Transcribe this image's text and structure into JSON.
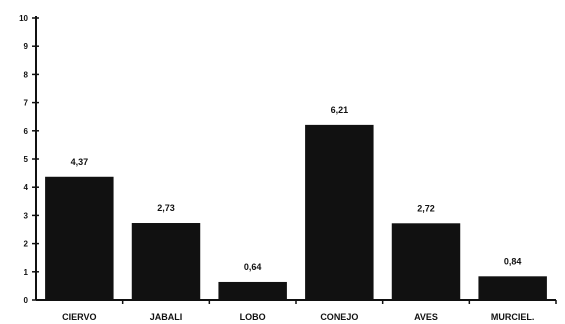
{
  "chart_data": {
    "type": "bar",
    "title": "",
    "xlabel": "",
    "ylabel": "",
    "categories": [
      "CIERVO",
      "JABALI",
      "LOBO",
      "CONEJO",
      "AVES",
      "MURCIEL."
    ],
    "values": [
      4.37,
      2.73,
      0.64,
      6.21,
      2.72,
      0.84
    ],
    "value_labels": [
      "4,37",
      "2,73",
      "0,64",
      "6,21",
      "2,72",
      "0,84"
    ],
    "ylim": [
      0,
      10
    ],
    "yticks": [
      0,
      1,
      2,
      3,
      4,
      5,
      6,
      7,
      8,
      9,
      10
    ],
    "ytick_labels": [
      "0",
      "1",
      "2",
      "3",
      "4",
      "5",
      "6",
      "7",
      "8",
      "9",
      "10"
    ],
    "grid": false,
    "legend": "none",
    "colors": {
      "bar": "#111111",
      "axis": "#111111",
      "background": "#ffffff"
    }
  }
}
